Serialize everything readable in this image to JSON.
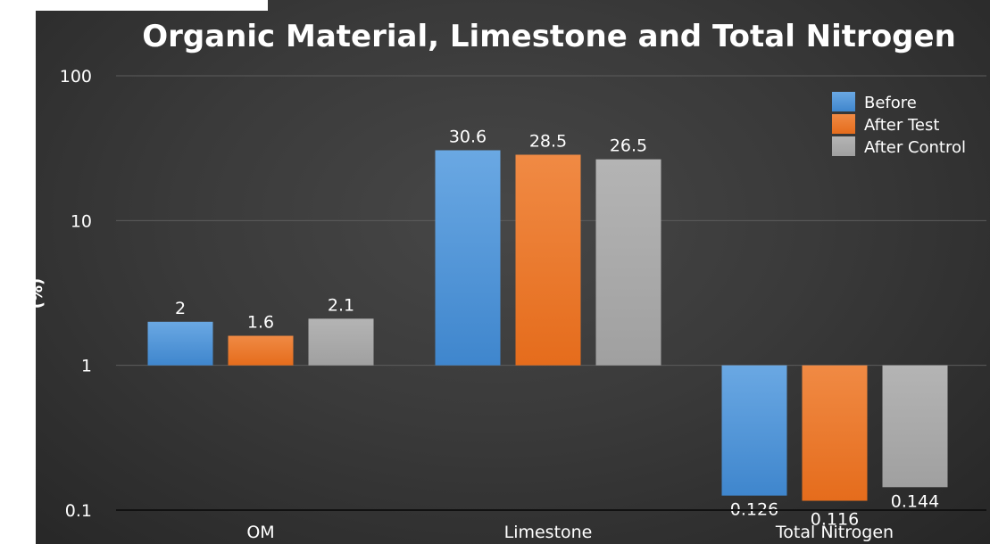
{
  "chart_data": {
    "type": "bar",
    "title": "Organic Material, Limestone and Total Nitrogen",
    "ylabel": "(%)",
    "xlabel": "",
    "yscale": "log",
    "ylim": [
      0.1,
      100
    ],
    "yticks": [
      "0.1",
      "1",
      "10",
      "100"
    ],
    "grid": true,
    "legend_position": "top-right",
    "categories": [
      "OM",
      "Limestone",
      "Total Nitrogen"
    ],
    "series": [
      {
        "name": "Before",
        "color": "#4a8fd6",
        "values": [
          2,
          30.6,
          0.126
        ],
        "labels": [
          "2",
          "30.6",
          "0.126"
        ]
      },
      {
        "name": "After Test",
        "color": "#ee7424",
        "values": [
          1.6,
          28.5,
          0.116
        ],
        "labels": [
          "1.6",
          "28.5",
          "0.116"
        ]
      },
      {
        "name": "After Control",
        "color": "#a9a9a9",
        "values": [
          2.1,
          26.5,
          0.144
        ],
        "labels": [
          "2.1",
          "26.5",
          "0.144"
        ]
      }
    ]
  }
}
